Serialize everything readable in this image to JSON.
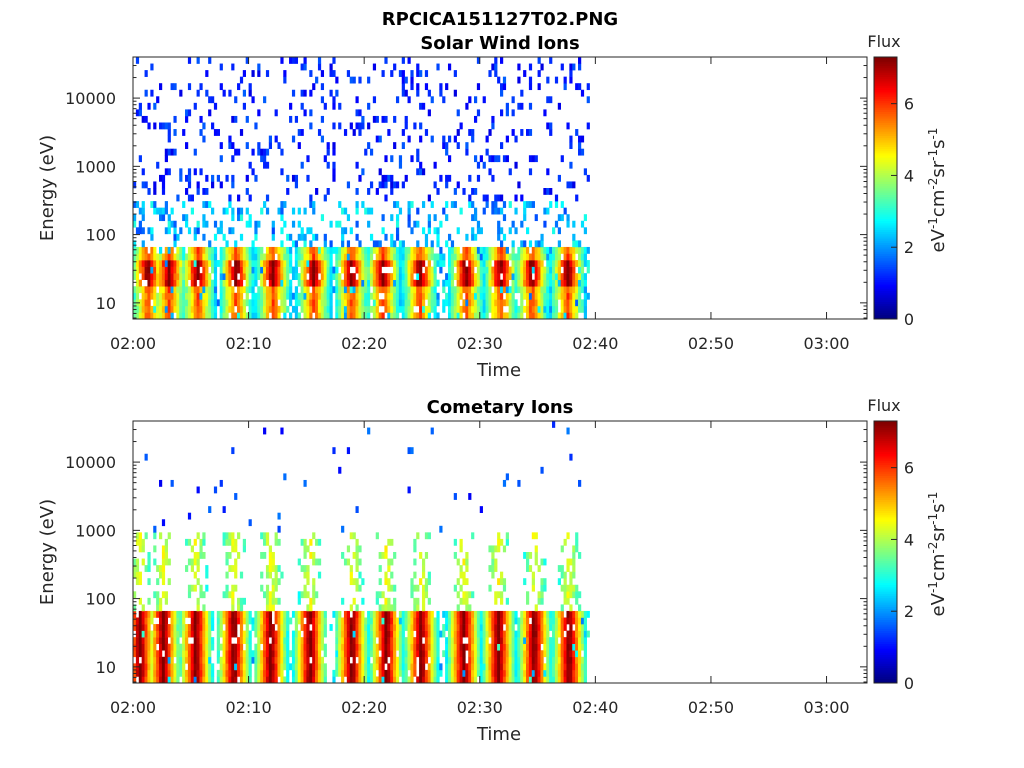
{
  "figure": {
    "filename": "RPCICA151127T02.PNG"
  },
  "colorbar": {
    "label": "Flux",
    "unit_label": "eV-1cm-2sr-1s-1",
    "range": [
      0,
      7.3
    ],
    "ticks": [
      0,
      2,
      4,
      6
    ],
    "colormap": "jet"
  },
  "chart_data": [
    {
      "type": "heatmap",
      "title": "Solar Wind Ions",
      "xlabel": "Time",
      "ylabel": "Energy (eV)",
      "x_ticks": [
        "02:00",
        "02:10",
        "02:20",
        "02:30",
        "02:40",
        "02:50",
        "03:00"
      ],
      "x_range_minutes": [
        0,
        63.5
      ],
      "data_end_minute": 39.3,
      "y_scale": "log",
      "y_ticks": [
        10,
        100,
        1000,
        10000
      ],
      "y_range": [
        5.8,
        40000
      ],
      "bursts_minutes": [
        1.2,
        3,
        5.5,
        8.8,
        12,
        15.5,
        18.8,
        21.5,
        24.7,
        28.7,
        31.7,
        34.4,
        37.5
      ],
      "description_levels": {
        "low_energy_flux_max": 7.3,
        "high_energy_flux_min": 0.8
      }
    },
    {
      "type": "heatmap",
      "title": "Cometary Ions",
      "xlabel": "Time",
      "ylabel": "Energy (eV)",
      "x_ticks": [
        "02:00",
        "02:10",
        "02:20",
        "02:30",
        "02:40",
        "02:50",
        "03:00"
      ],
      "x_range_minutes": [
        0,
        63.5
      ],
      "data_end_minute": 39.3,
      "y_scale": "log",
      "y_ticks": [
        10,
        100,
        1000,
        10000
      ],
      "y_range": [
        5.8,
        40000
      ],
      "bursts_minutes": [
        0.5,
        2.5,
        5.3,
        8.6,
        11.8,
        15.2,
        18.8,
        21.8,
        24.8,
        28.5,
        31.5,
        34.6,
        37.6
      ]
    }
  ]
}
